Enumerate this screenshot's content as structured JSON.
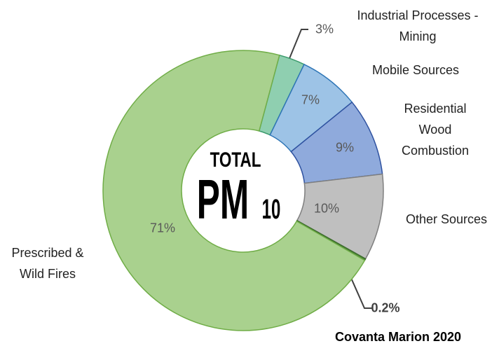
{
  "chart_data": {
    "type": "donut",
    "categories": [
      "Industrial Processes - Mining",
      "Mobile Sources",
      "Residential Wood Combustion",
      "Other Sources",
      "Covanta Marion 2020",
      "Prescribed & Wild Fires"
    ],
    "values": [
      3,
      7,
      9,
      10,
      0.2,
      71
    ],
    "value_labels": [
      "3%",
      "7%",
      "9%",
      "10%",
      "0.2%",
      "71%"
    ],
    "colors": [
      "#8fcfb0",
      "#9dc3e6",
      "#8faadc",
      "#bfbfbf",
      "#4f8a3a",
      "#a9d18e"
    ],
    "center_text": [
      "TOTAL",
      "PM",
      "10"
    ]
  }
}
